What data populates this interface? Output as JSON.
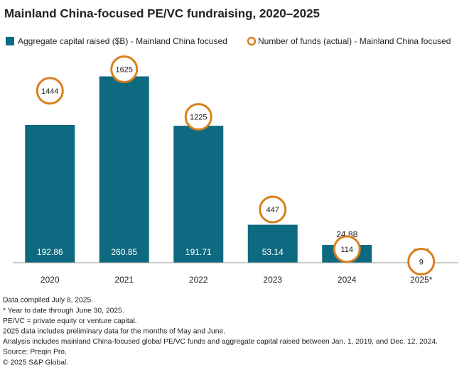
{
  "chart_data": {
    "type": "bar_with_circles",
    "title": "Mainland China-focused PE/VC fundraising, 2020–2025",
    "categories": [
      "2020",
      "2021",
      "2022",
      "2023",
      "2024",
      "2025*"
    ],
    "series": [
      {
        "name": "Aggregate capital raised ($B) - Mainland China focused",
        "color": "#0e6a80",
        "values": [
          192.86,
          260.85,
          191.71,
          53.14,
          24.88,
          0.35
        ]
      },
      {
        "name": "Number of funds (actual) - Mainland China focused",
        "color": "#d9801c",
        "axis": "y2",
        "values": [
          1444,
          1625,
          1225,
          447,
          114,
          9
        ]
      }
    ],
    "ylim": [
      0,
      330
    ],
    "y2lim": [
      0,
      1980
    ],
    "notes": [
      "Data compiled July 8, 2025.",
      "* Year to date through June 30, 2025.",
      "PE/VC = private equity or venture capital.",
      "2025 data includes preliminary data for the months of May and June.",
      "Analysis includes mainland China-focused global PE/VC funds and aggregate capital raised between Jan. 1, 2019, and Dec. 12, 2024.",
      "Source: Preqin Pro.",
      "© 2025 S&P Global."
    ]
  }
}
